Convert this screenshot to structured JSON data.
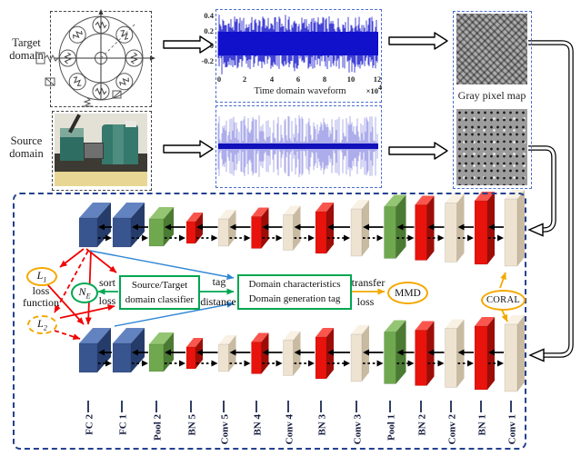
{
  "figure": {
    "target_domain": {
      "label_line1": "Target",
      "label_line2": "domain"
    },
    "source_domain": {
      "label_line1": "Source",
      "label_line2": "domain"
    },
    "waveform_plot": {
      "yticks": [
        "0.4",
        "0.2",
        "0",
        "-0.2"
      ],
      "xticks": [
        "0",
        "2",
        "4",
        "6",
        "8",
        "10",
        "12"
      ],
      "x_scale": "×10",
      "x_scale_exp": "4",
      "xlabel": "Time domain waveform"
    },
    "gray_map": {
      "label": "Gray pixel map"
    },
    "annotations": {
      "l1_main": "L",
      "l1_sub": "1",
      "l2_main": "L",
      "l2_sub": "2",
      "loss_function_line1": "loss",
      "loss_function_line2": "function",
      "ne_main": "N",
      "ne_sub": "E",
      "sort": "sort",
      "sort_loss": "loss",
      "classifier_line1": "Source/Target",
      "classifier_line2": "domain classifier",
      "tag": "tag",
      "distance": "distance",
      "domain_box_line1": "Domain characteristics",
      "domain_box_line2": "Domain generation tag",
      "transfer": "transfer",
      "transfer_loss": "loss",
      "mmd": "MMD",
      "coral": "CORAL"
    },
    "network": {
      "layers": [
        {
          "label": "FC 2",
          "color": "blue"
        },
        {
          "label": "FC 1",
          "color": "blue"
        },
        {
          "label": "Pool 2",
          "color": "green"
        },
        {
          "label": "BN 5",
          "color": "red"
        },
        {
          "label": "Conv 5",
          "color": "cream"
        },
        {
          "label": "BN 4",
          "color": "red"
        },
        {
          "label": "Conv 4",
          "color": "cream"
        },
        {
          "label": "BN 3",
          "color": "red"
        },
        {
          "label": "Conv 3",
          "color": "cream"
        },
        {
          "label": "Pool 1",
          "color": "green"
        },
        {
          "label": "BN 2",
          "color": "red"
        },
        {
          "label": "Conv 2",
          "color": "cream"
        },
        {
          "label": "BN 1",
          "color": "red"
        },
        {
          "label": "Conv 1",
          "color": "cream"
        }
      ]
    },
    "colors": {
      "accent_orange": "#F5A800",
      "accent_green": "#00A651",
      "accent_red": "#F00303",
      "accent_blue_line": "#2E86D4",
      "slab_blue": "#3A5794",
      "slab_green": "#6FA84F",
      "slab_red": "#E8130C",
      "slab_cream": "#EDE3D0",
      "box_border_blue": "#23418F",
      "waveform_blue": "#1212CC"
    }
  }
}
